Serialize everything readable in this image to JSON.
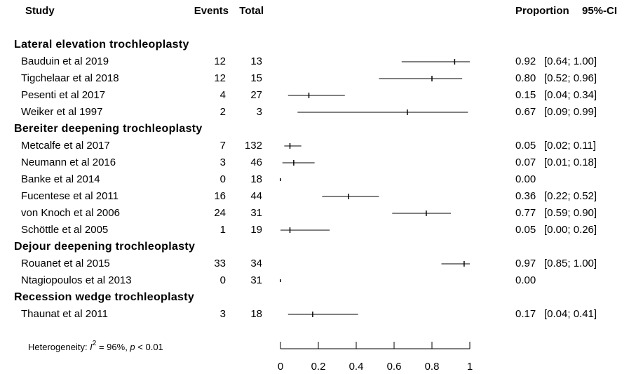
{
  "chart_data": {
    "type": "forest",
    "headers": {
      "study": "Study",
      "events": "Events",
      "total": "Total",
      "proportion": "Proportion",
      "ci": "95%-CI"
    },
    "groups": [
      {
        "name": "Lateral elevation trochleoplasty",
        "studies": [
          {
            "study": "Bauduin et al 2019",
            "events": 12,
            "total": 13,
            "proportion": 0.92,
            "ci_lower": 0.64,
            "ci_upper": 1.0,
            "ci_label": "[0.64; 1.00]"
          },
          {
            "study": "Tigchelaar et al 2018",
            "events": 12,
            "total": 15,
            "proportion": 0.8,
            "proportion_label": "0.80",
            "ci_lower": 0.52,
            "ci_upper": 0.96,
            "ci_label": "[0.52; 0.96]"
          },
          {
            "study": "Pesenti et al 2017",
            "events": 4,
            "total": 27,
            "proportion": 0.15,
            "ci_lower": 0.04,
            "ci_upper": 0.34,
            "ci_label": "[0.04; 0.34]"
          },
          {
            "study": "Weiker et al 1997",
            "events": 2,
            "total": 3,
            "proportion": 0.67,
            "ci_lower": 0.09,
            "ci_upper": 0.99,
            "ci_label": "[0.09; 0.99]"
          }
        ]
      },
      {
        "name": "Bereiter deepening trochleoplasty",
        "studies": [
          {
            "study": "Metcalfe et al 2017",
            "events": 7,
            "total": 132,
            "proportion": 0.05,
            "ci_lower": 0.02,
            "ci_upper": 0.11,
            "ci_label": "[0.02; 0.11]"
          },
          {
            "study": "Neumann et al 2016",
            "events": 3,
            "total": 46,
            "proportion": 0.07,
            "ci_lower": 0.01,
            "ci_upper": 0.18,
            "ci_label": "[0.01; 0.18]"
          },
          {
            "study": "Banke et al 2014",
            "events": 0,
            "total": 18,
            "proportion": 0,
            "proportion_label": "0.00"
          },
          {
            "study": "Fucentese et al 2011",
            "events": 16,
            "total": 44,
            "proportion": 0.36,
            "ci_lower": 0.22,
            "ci_upper": 0.52,
            "ci_label": "[0.22; 0.52]"
          },
          {
            "study": "von Knoch et al 2006",
            "events": 24,
            "total": 31,
            "proportion": 0.77,
            "ci_lower": 0.59,
            "ci_upper": 0.9,
            "ci_label": "[0.59; 0.90]"
          },
          {
            "study": "Schöttle et al 2005",
            "events": 1,
            "total": 19,
            "proportion": 0.05,
            "ci_lower": 0.0,
            "ci_upper": 0.26,
            "ci_label": "[0.00; 0.26]"
          }
        ]
      },
      {
        "name": "Dejour deepening trochleoplasty",
        "studies": [
          {
            "study": "Rouanet et al 2015",
            "events": 33,
            "total": 34,
            "proportion": 0.97,
            "ci_lower": 0.85,
            "ci_upper": 1.0,
            "ci_label": "[0.85; 1.00]"
          },
          {
            "study": "Ntagiopoulos et al 2013",
            "events": 0,
            "total": 31,
            "proportion": 0,
            "proportion_label": "0.00"
          }
        ]
      },
      {
        "name": "Recession wedge trochleoplasty",
        "studies": [
          {
            "study": "Thaunat et al 2011",
            "events": 3,
            "total": 18,
            "proportion": 0.17,
            "ci_lower": 0.04,
            "ci_upper": 0.41,
            "ci_label": "[0.04; 0.41]"
          }
        ]
      }
    ],
    "heterogeneity": {
      "prefix": "Heterogeneity: ",
      "i": "I",
      "sup": "2",
      "middle": " = 96%, ",
      "p": "p",
      "suffix": " < 0.01"
    },
    "xlim": [
      0,
      1
    ],
    "xticks": [
      0,
      0.2,
      0.4,
      0.6,
      0.8,
      1
    ],
    "color": "#000000"
  }
}
